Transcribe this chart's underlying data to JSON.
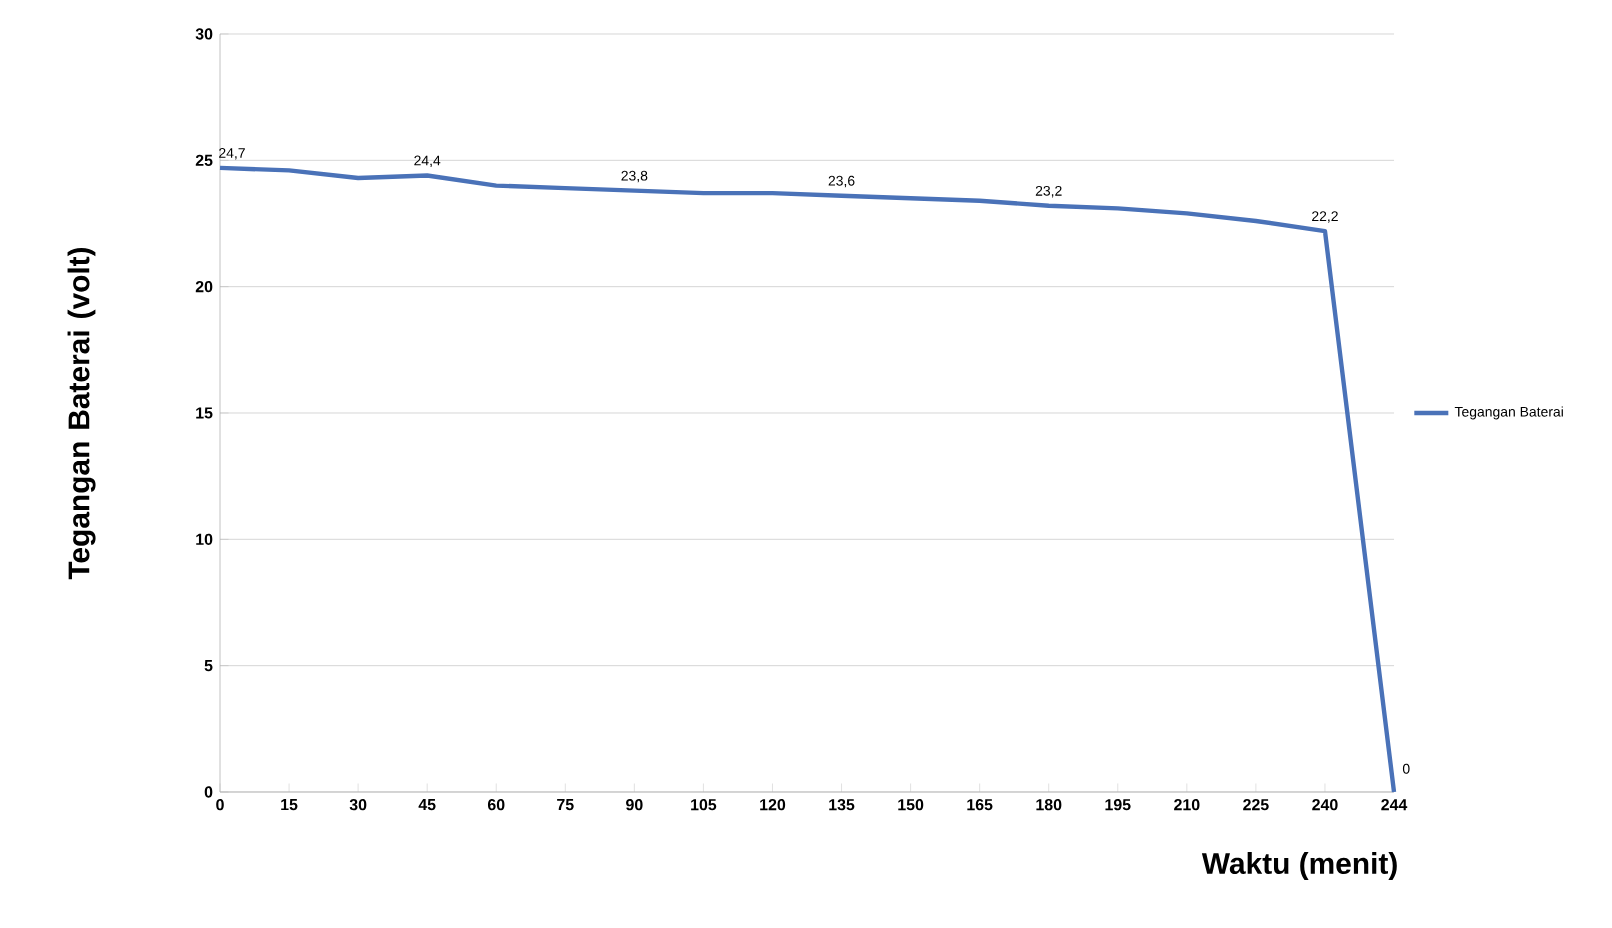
{
  "chart_data": {
    "type": "line",
    "xlabel": "Waktu (menit)",
    "ylabel": "Tegangan Baterai (volt)",
    "categories": [
      "0",
      "15",
      "30",
      "45",
      "60",
      "75",
      "90",
      "105",
      "120",
      "135",
      "150",
      "165",
      "180",
      "195",
      "210",
      "225",
      "240",
      "244"
    ],
    "series": [
      {
        "name": "Tegangan Baterai",
        "color": "#4a72b8",
        "values": [
          24.7,
          24.6,
          24.3,
          24.4,
          24.0,
          23.9,
          23.8,
          23.7,
          23.7,
          23.6,
          23.5,
          23.4,
          23.2,
          23.1,
          22.9,
          22.6,
          22.2,
          0
        ],
        "value_labels": [
          "24,7",
          null,
          null,
          "24,4",
          null,
          null,
          "23,8",
          null,
          null,
          "23,6",
          null,
          null,
          "23,2",
          null,
          null,
          null,
          "22,2",
          "0"
        ]
      }
    ],
    "ylim": [
      0,
      30
    ],
    "yticks": [
      0,
      5,
      10,
      15,
      20,
      25,
      30
    ],
    "grid": "y",
    "legend": "right",
    "marker": "none",
    "line_style": "solid"
  }
}
